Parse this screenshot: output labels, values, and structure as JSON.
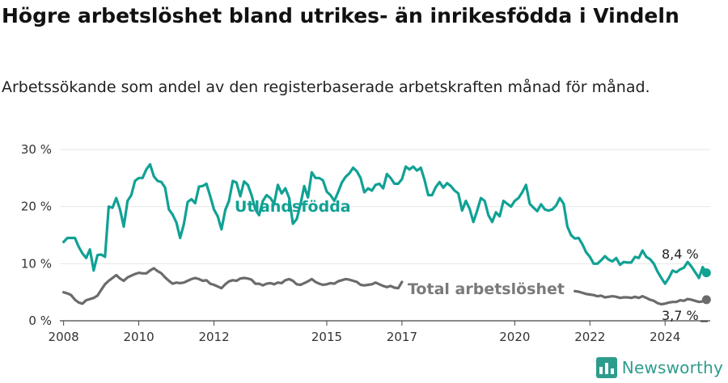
{
  "title": "Högre arbetslöshet bland utrikes- än inrikesfödda i Vindeln",
  "subtitle": "Arbetssökande som andel av den registerbaserade arbetskraften månad för månad.",
  "brand": "Newsworthy",
  "colors": {
    "foreign": "#11a195",
    "total": "#6b6b6b",
    "grid": "#e6e6e6",
    "axis": "#333333"
  },
  "chart_data": {
    "type": "line",
    "ylim": [
      0,
      30
    ],
    "yticks": [
      0,
      10,
      20,
      30
    ],
    "ytick_labels": [
      "0 %",
      "10 %",
      "20 %",
      "30 %"
    ],
    "xlim": [
      2007.9,
      2025.2
    ],
    "xticks": [
      2008,
      2010,
      2012,
      2015,
      2017,
      2020,
      2022,
      2024
    ],
    "xtick_labels": [
      "2008",
      "2010",
      "2012",
      "2015",
      "2017",
      "2020",
      "2022",
      "2024"
    ],
    "grid": true,
    "series": [
      {
        "name": "Utlandsfödda",
        "color": "#11a195",
        "end_label": "8,4 %",
        "points": [
          [
            2008.0,
            13.8
          ],
          [
            2008.1,
            14.5
          ],
          [
            2008.2,
            14.5
          ],
          [
            2008.3,
            14.5
          ],
          [
            2008.4,
            13
          ],
          [
            2008.5,
            11.8
          ],
          [
            2008.6,
            11
          ],
          [
            2008.7,
            12.5
          ],
          [
            2008.8,
            8.8
          ],
          [
            2008.9,
            11.5
          ],
          [
            2009.0,
            11.6
          ],
          [
            2009.1,
            11.2
          ],
          [
            2009.2,
            20
          ],
          [
            2009.3,
            19.8
          ],
          [
            2009.4,
            21.5
          ],
          [
            2009.5,
            19.5
          ],
          [
            2009.6,
            16.5
          ],
          [
            2009.7,
            21
          ],
          [
            2009.8,
            22
          ],
          [
            2009.9,
            24.5
          ],
          [
            2010.0,
            25
          ],
          [
            2010.1,
            25
          ],
          [
            2010.2,
            26.5
          ],
          [
            2010.3,
            27.4
          ],
          [
            2010.4,
            25.3
          ],
          [
            2010.5,
            24.5
          ],
          [
            2010.6,
            24.3
          ],
          [
            2010.7,
            23.3
          ],
          [
            2010.8,
            19.5
          ],
          [
            2010.9,
            18.6
          ],
          [
            2011.0,
            17.2
          ],
          [
            2011.1,
            14.5
          ],
          [
            2011.2,
            17
          ],
          [
            2011.3,
            20.8
          ],
          [
            2011.4,
            21.3
          ],
          [
            2011.5,
            20.6
          ],
          [
            2011.6,
            23.5
          ],
          [
            2011.7,
            23.6
          ],
          [
            2011.8,
            24
          ],
          [
            2011.9,
            21.8
          ],
          [
            2012.0,
            19.5
          ],
          [
            2012.1,
            18.3
          ],
          [
            2012.2,
            16
          ],
          [
            2012.3,
            19.4
          ],
          [
            2012.4,
            21
          ],
          [
            2012.5,
            24.5
          ],
          [
            2012.6,
            24.2
          ],
          [
            2012.7,
            21.8
          ],
          [
            2012.8,
            24.4
          ],
          [
            2012.9,
            23.8
          ],
          [
            2013.0,
            22
          ],
          [
            2013.1,
            19.5
          ],
          [
            2013.2,
            18.5
          ],
          [
            2013.3,
            21
          ],
          [
            2013.4,
            22
          ],
          [
            2013.5,
            21.5
          ],
          [
            2013.6,
            20.5
          ],
          [
            2013.7,
            23.8
          ],
          [
            2013.8,
            22.3
          ],
          [
            2013.9,
            23.2
          ],
          [
            2014.0,
            21.5
          ],
          [
            2014.1,
            17
          ],
          [
            2014.2,
            17.8
          ],
          [
            2014.3,
            20.3
          ],
          [
            2014.4,
            23.6
          ],
          [
            2014.5,
            21.6
          ],
          [
            2014.6,
            26
          ],
          [
            2014.7,
            25
          ],
          [
            2014.8,
            25
          ],
          [
            2014.9,
            24.6
          ],
          [
            2015.0,
            22.6
          ],
          [
            2015.1,
            22
          ],
          [
            2015.2,
            21
          ],
          [
            2015.3,
            22.5
          ],
          [
            2015.4,
            24.2
          ],
          [
            2015.5,
            25.2
          ],
          [
            2015.6,
            25.8
          ],
          [
            2015.7,
            26.8
          ],
          [
            2015.8,
            26.2
          ],
          [
            2015.9,
            25
          ],
          [
            2016.0,
            22.5
          ],
          [
            2016.1,
            23.2
          ],
          [
            2016.2,
            22.8
          ],
          [
            2016.3,
            23.8
          ],
          [
            2016.4,
            24
          ],
          [
            2016.5,
            23.2
          ],
          [
            2016.6,
            25.7
          ],
          [
            2016.7,
            25
          ],
          [
            2016.8,
            24
          ],
          [
            2016.9,
            24
          ],
          [
            2017.0,
            24.8
          ],
          [
            2017.1,
            27
          ],
          [
            2017.2,
            26.5
          ],
          [
            2017.3,
            27
          ],
          [
            2017.4,
            26.3
          ],
          [
            2017.5,
            26.8
          ],
          [
            2017.6,
            24.7
          ],
          [
            2017.7,
            22
          ],
          [
            2017.8,
            22
          ],
          [
            2017.9,
            23.4
          ],
          [
            2018.0,
            24.3
          ],
          [
            2018.1,
            23.3
          ],
          [
            2018.2,
            24.1
          ],
          [
            2018.3,
            23.6
          ],
          [
            2018.4,
            22.8
          ],
          [
            2018.5,
            22.3
          ],
          [
            2018.6,
            19.3
          ],
          [
            2018.7,
            21
          ],
          [
            2018.8,
            19.6
          ],
          [
            2018.9,
            17.3
          ],
          [
            2019.0,
            19.3
          ],
          [
            2019.1,
            21.5
          ],
          [
            2019.2,
            21
          ],
          [
            2019.3,
            18.5
          ],
          [
            2019.4,
            17.3
          ],
          [
            2019.5,
            19
          ],
          [
            2019.6,
            18.3
          ],
          [
            2019.7,
            21
          ],
          [
            2019.8,
            20.5
          ],
          [
            2019.9,
            20
          ],
          [
            2020.0,
            21
          ],
          [
            2020.1,
            21.5
          ],
          [
            2020.2,
            22.5
          ],
          [
            2020.3,
            23.8
          ],
          [
            2020.4,
            20.5
          ],
          [
            2020.5,
            19.8
          ],
          [
            2020.6,
            19.2
          ],
          [
            2020.7,
            20.4
          ],
          [
            2020.8,
            19.5
          ],
          [
            2020.9,
            19.3
          ],
          [
            2021.0,
            19.5
          ],
          [
            2021.1,
            20.2
          ],
          [
            2021.2,
            21.5
          ],
          [
            2021.3,
            20.5
          ],
          [
            2021.4,
            16.5
          ],
          [
            2021.5,
            15
          ],
          [
            2021.6,
            14.4
          ],
          [
            2021.7,
            14.5
          ],
          [
            2021.8,
            13.4
          ],
          [
            2021.9,
            12
          ],
          [
            2022.0,
            11.2
          ],
          [
            2022.1,
            10
          ],
          [
            2022.2,
            10
          ],
          [
            2022.3,
            10.6
          ],
          [
            2022.4,
            11.3
          ],
          [
            2022.5,
            10.7
          ],
          [
            2022.6,
            10.4
          ],
          [
            2022.7,
            11
          ],
          [
            2022.8,
            9.8
          ],
          [
            2022.9,
            10.3
          ],
          [
            2023.0,
            10.2
          ],
          [
            2023.1,
            10.2
          ],
          [
            2023.2,
            11.2
          ],
          [
            2023.3,
            11
          ],
          [
            2023.4,
            12.3
          ],
          [
            2023.5,
            11.2
          ],
          [
            2023.6,
            10.8
          ],
          [
            2023.7,
            10
          ],
          [
            2023.8,
            8.6
          ],
          [
            2023.9,
            7.5
          ],
          [
            2024.0,
            6.5
          ],
          [
            2024.1,
            7.5
          ],
          [
            2024.2,
            8.8
          ],
          [
            2024.3,
            8.5
          ],
          [
            2024.4,
            9
          ],
          [
            2024.5,
            9.3
          ],
          [
            2024.6,
            10.3
          ],
          [
            2024.7,
            9.5
          ],
          [
            2024.8,
            8.5
          ],
          [
            2024.9,
            7.5
          ],
          [
            2025.0,
            9.4
          ],
          [
            2025.1,
            8.4
          ]
        ]
      },
      {
        "name": "Total arbetslöshet",
        "color": "#6b6b6b",
        "end_label": "3,7 %",
        "points": [
          [
            2008.0,
            5
          ],
          [
            2008.1,
            4.8
          ],
          [
            2008.2,
            4.5
          ],
          [
            2008.3,
            3.7
          ],
          [
            2008.4,
            3.2
          ],
          [
            2008.5,
            3
          ],
          [
            2008.6,
            3.6
          ],
          [
            2008.7,
            3.8
          ],
          [
            2008.8,
            4
          ],
          [
            2008.9,
            4.4
          ],
          [
            2009.0,
            5.4
          ],
          [
            2009.1,
            6.4
          ],
          [
            2009.2,
            7
          ],
          [
            2009.3,
            7.5
          ],
          [
            2009.4,
            8
          ],
          [
            2009.5,
            7.4
          ],
          [
            2009.6,
            7
          ],
          [
            2009.7,
            7.6
          ],
          [
            2009.8,
            7.9
          ],
          [
            2009.9,
            8.2
          ],
          [
            2010.0,
            8.4
          ],
          [
            2010.1,
            8.3
          ],
          [
            2010.2,
            8.3
          ],
          [
            2010.3,
            8.8
          ],
          [
            2010.4,
            9.2
          ],
          [
            2010.5,
            8.7
          ],
          [
            2010.6,
            8.3
          ],
          [
            2010.7,
            7.6
          ],
          [
            2010.8,
            7
          ],
          [
            2010.9,
            6.5
          ],
          [
            2011.0,
            6.7
          ],
          [
            2011.1,
            6.6
          ],
          [
            2011.2,
            6.7
          ],
          [
            2011.3,
            7
          ],
          [
            2011.4,
            7.3
          ],
          [
            2011.5,
            7.5
          ],
          [
            2011.6,
            7.3
          ],
          [
            2011.7,
            7
          ],
          [
            2011.8,
            7.1
          ],
          [
            2011.9,
            6.5
          ],
          [
            2012.0,
            6.3
          ],
          [
            2012.1,
            6
          ],
          [
            2012.2,
            5.7
          ],
          [
            2012.3,
            6.4
          ],
          [
            2012.4,
            6.9
          ],
          [
            2012.5,
            7.1
          ],
          [
            2012.6,
            7
          ],
          [
            2012.7,
            7.4
          ],
          [
            2012.8,
            7.5
          ],
          [
            2012.9,
            7.4
          ],
          [
            2013.0,
            7.2
          ],
          [
            2013.1,
            6.5
          ],
          [
            2013.2,
            6.5
          ],
          [
            2013.3,
            6.2
          ],
          [
            2013.4,
            6.5
          ],
          [
            2013.5,
            6.6
          ],
          [
            2013.6,
            6.4
          ],
          [
            2013.7,
            6.7
          ],
          [
            2013.8,
            6.6
          ],
          [
            2013.9,
            7.1
          ],
          [
            2014.0,
            7.3
          ],
          [
            2014.1,
            7
          ],
          [
            2014.2,
            6.4
          ],
          [
            2014.3,
            6.3
          ],
          [
            2014.4,
            6.6
          ],
          [
            2014.5,
            6.9
          ],
          [
            2014.6,
            7.3
          ],
          [
            2014.7,
            6.8
          ],
          [
            2014.8,
            6.5
          ],
          [
            2014.9,
            6.3
          ],
          [
            2015.0,
            6.4
          ],
          [
            2015.1,
            6.6
          ],
          [
            2015.2,
            6.5
          ],
          [
            2015.3,
            6.9
          ],
          [
            2015.4,
            7.1
          ],
          [
            2015.5,
            7.3
          ],
          [
            2015.6,
            7.2
          ],
          [
            2015.7,
            7
          ],
          [
            2015.8,
            6.8
          ],
          [
            2015.9,
            6.3
          ],
          [
            2016.0,
            6.2
          ],
          [
            2016.1,
            6.3
          ],
          [
            2016.2,
            6.4
          ],
          [
            2016.3,
            6.7
          ],
          [
            2016.4,
            6.4
          ],
          [
            2016.5,
            6.1
          ],
          [
            2016.6,
            5.9
          ],
          [
            2016.7,
            6.1
          ],
          [
            2016.8,
            5.8
          ],
          [
            2016.9,
            5.7
          ],
          [
            2017.0,
            6.8
          ],
          [
            2021.6,
            5.2
          ],
          [
            2021.7,
            5.1
          ],
          [
            2021.8,
            4.9
          ],
          [
            2021.9,
            4.7
          ],
          [
            2022.0,
            4.6
          ],
          [
            2022.1,
            4.5
          ],
          [
            2022.2,
            4.3
          ],
          [
            2022.3,
            4.4
          ],
          [
            2022.4,
            4.1
          ],
          [
            2022.5,
            4.2
          ],
          [
            2022.6,
            4.3
          ],
          [
            2022.7,
            4.2
          ],
          [
            2022.8,
            4.0
          ],
          [
            2022.9,
            4.1
          ],
          [
            2023.0,
            4.1
          ],
          [
            2023.1,
            4.0
          ],
          [
            2023.2,
            4.2
          ],
          [
            2023.3,
            4.0
          ],
          [
            2023.4,
            4.3
          ],
          [
            2023.5,
            4.0
          ],
          [
            2023.6,
            3.7
          ],
          [
            2023.7,
            3.5
          ],
          [
            2023.8,
            3.1
          ],
          [
            2023.9,
            2.9
          ],
          [
            2024.0,
            3.0
          ],
          [
            2024.1,
            3.2
          ],
          [
            2024.2,
            3.3
          ],
          [
            2024.3,
            3.3
          ],
          [
            2024.4,
            3.6
          ],
          [
            2024.5,
            3.5
          ],
          [
            2024.6,
            3.8
          ],
          [
            2024.7,
            3.7
          ],
          [
            2024.8,
            3.5
          ],
          [
            2024.9,
            3.3
          ],
          [
            2025.0,
            3.4
          ],
          [
            2025.1,
            3.7
          ]
        ]
      }
    ]
  }
}
